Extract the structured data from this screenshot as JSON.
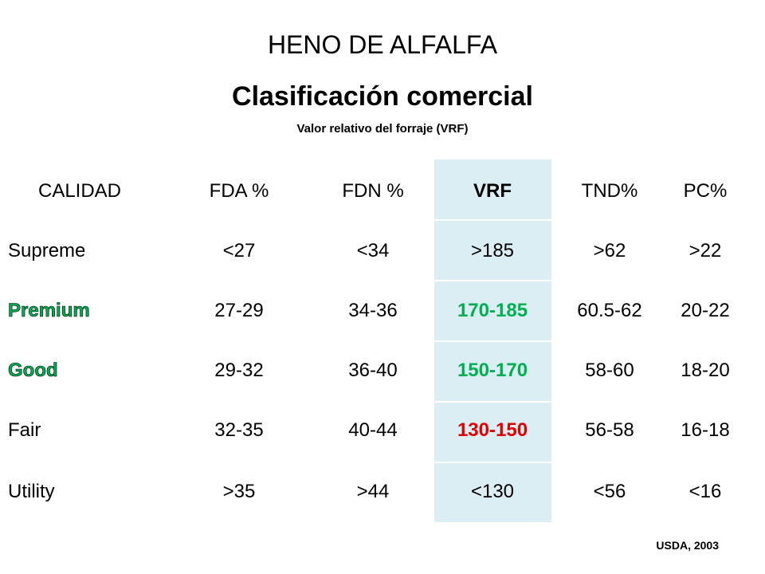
{
  "header": {
    "title": "HENO DE ALFALFA",
    "heading": "Clasificación comercial",
    "subtitle": "Valor relativo del forraje (VRF)"
  },
  "table": {
    "columns": [
      "CALIDAD",
      "FDA %",
      "FDN %",
      "VRF",
      "TND%",
      "PC%"
    ],
    "rows": [
      [
        "Supreme",
        "<27",
        "<34",
        ">185",
        ">62",
        ">22"
      ],
      [
        "Premium",
        "27-29",
        "34-36",
        "170-185",
        "60.5-62",
        "20-22"
      ],
      [
        "Good",
        "29-32",
        "36-40",
        "150-170",
        "58-60",
        "18-20"
      ],
      [
        "Fair",
        "32-35",
        "40-44",
        "130-150",
        "56-58",
        "16-18"
      ],
      [
        "Utility",
        ">35",
        ">44",
        "<130",
        "<56",
        "<16"
      ]
    ]
  },
  "footer": {
    "source": "USDA, 2003"
  }
}
